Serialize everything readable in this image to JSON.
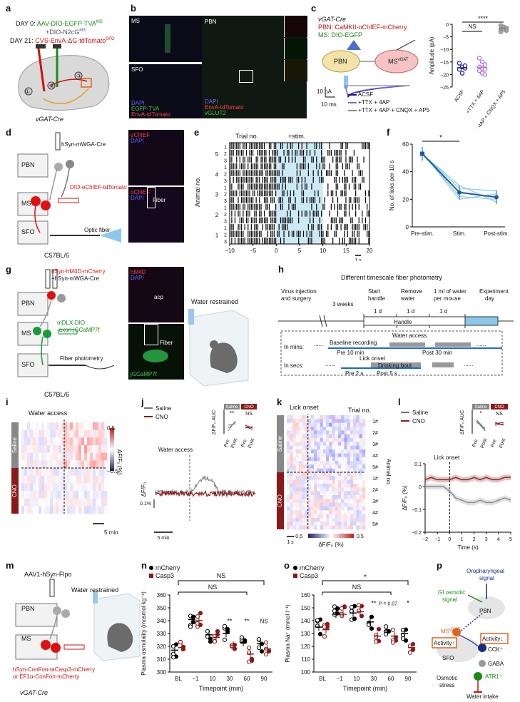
{
  "panels": {
    "a": "a",
    "b": "b",
    "c": "c",
    "d": "d",
    "e": "e",
    "f": "f",
    "g": "g",
    "h": "h",
    "i": "i",
    "j": "j",
    "k": "k",
    "l": "l",
    "m": "m",
    "n": "n",
    "o": "o",
    "p": "p"
  },
  "a": {
    "day0": "DAY 0:",
    "aav": "AAV-DIO-EGFP-TVA",
    "ms_sup": "MS",
    "n2cg": "+DIO-N2cG",
    "ms_sup2": "MS",
    "day21": "DAY 21:",
    "cvs": "CVS-EnvA-ΔG-tdTomato",
    "sfo_sup": "SFO",
    "n1": "①",
    "n2": "②",
    "n3": "③",
    "mouse": "vGAT-Cre"
  },
  "b": {
    "ms": "MS",
    "sfo": "SFO",
    "pbn": "PBN",
    "dapi": "DAPI",
    "egfp": "EGFP-TVA",
    "envA": "EnvA-tdTomato",
    "dapi2": "DAPI",
    "envA2": "EnvA-tdTomato",
    "vglut": "vGLUT2"
  },
  "c": {
    "line1": "vGAT-Cre",
    "line2": "PBN: CaMKII-oChIEF-mCherry",
    "line3": "MS: DIO-EGFP",
    "pbn": "PBN",
    "ms": "MS",
    "ms_sup": "vGAT",
    "scale_y": "10 pA",
    "scale_x": "10 ms",
    "legend": [
      "ACSF",
      "+TTX + 4AP",
      "+TTX + 4AP + CNQX + AP5"
    ],
    "ylabel": "Amplitude (pA)",
    "yticks": [
      "0",
      "−5",
      "−10",
      "−15",
      "−20",
      "−25"
    ],
    "ns": "NS",
    "sig": "****",
    "xticks": [
      "ACSF",
      "+TTX + 4AP",
      "+TTX + 4AP + CNQX + AP5"
    ]
  },
  "d": {
    "cre": "hSyn-mWGA-Cre",
    "pbn": "PBN",
    "ms": "MS",
    "dio": "DIO-oChIEF-tdTomato",
    "sfo": "SFO",
    "optic": "Optic fiber",
    "strain": "C57BL/6",
    "och1": "oChIEF",
    "dapi1": "DAPI",
    "och2": "oChIEF",
    "dapi2": "DAPI",
    "fiber": "Fiber"
  },
  "e": {
    "trial": "Trial no.",
    "stim": "+stim.",
    "ylabel": "Animal no.",
    "xticks": [
      "−10",
      "−5",
      "0",
      "5",
      "10",
      "15",
      "20"
    ],
    "scale": "1 s",
    "animals": [
      "5",
      "4",
      "3",
      "2",
      "1"
    ],
    "trials": [
      "1",
      "2",
      "3"
    ]
  },
  "f": {
    "ylabel": "No. of licks per 10 s",
    "yticks": [
      "0",
      "20",
      "40",
      "60"
    ],
    "xticks": [
      "Pre-stim.",
      "Stim.",
      "Post-stim."
    ],
    "sig": "*"
  },
  "g": {
    "hm4d": "hSyn-hM4D-mCherry",
    "wga": "+hSyn-mWGA-Cre",
    "pbn": "PBN",
    "ms": "MS",
    "dlx": "mDLX-DIO",
    "gcamp": "-axon-jGCaMP7f",
    "sfo": "SFO",
    "fp": "Fiber photometry",
    "strain": "C57BL/6",
    "restrained": "Water restrained",
    "hm4d_l": "hM4D",
    "dapi_l": "DAPI",
    "acp": "acp",
    "fiber": "Fiber",
    "jg": "jGCaMP7f"
  },
  "h": {
    "title": "Different timescale fiber photometry",
    "virus": "Virus injection",
    "surgery": "and surgery",
    "weeks": "3 weeks",
    "start": "Start",
    "handle": "handle",
    "remove": "Remove",
    "water": "water",
    "oneml": "1 ml of water",
    "permouse": "per mouse",
    "exp": "Experiment",
    "day": "day",
    "d1": "1 d",
    "d2": "1 d",
    "d3": "1 d",
    "handle_bar": "Handle",
    "inmins": "In mins:",
    "baseline": "Baseline recording",
    "wateraccess": "Water access",
    "pre10": "Pre 10 min",
    "post30": "Post 30 min",
    "insecs": "In secs:",
    "lickonset": "Lick onset",
    "drinking": "Drinking bout",
    "pre2": "Pre 2 s",
    "post5": "Post 5 s",
    "dots1": "......",
    "dots2": "......",
    "dots3": "......",
    "dots4": "......"
  },
  "i": {
    "title": "Water access",
    "saline": "Saline",
    "cno": "CNO",
    "cb_max": "0.5",
    "cb_min": "−0.5",
    "cb_label": "ΔF/F₀ (%)",
    "scale": "5 min"
  },
  "j": {
    "saline": "Saline",
    "cno": "CNO",
    "wa": "Water access",
    "ylabel": "ΔF/F₀",
    "scale_y": "0.1%",
    "scale_x": "5 min",
    "inset_ylabel": "ΔF/F₀ AUC",
    "inset_saline": "Saline",
    "inset_cno": "CNO",
    "sig1": "**",
    "sig2": "NS",
    "pre": "Pre",
    "post": "Post",
    "pre2": "Pre",
    "post2": "Post"
  },
  "k": {
    "lick": "Lick onset",
    "trial": "Trial no.",
    "saline": "Saline",
    "cno": "CNO",
    "animals": [
      "1#",
      "2#",
      "3#",
      "4#",
      "5#",
      "1#",
      "2#",
      "3#",
      "4#",
      "5#"
    ],
    "ylabel": "Animal no.",
    "scale": "1 s",
    "cb_min": "−0.5",
    "cb_max": "0.5",
    "cb_label": "ΔF/F₀ (%)"
  },
  "l": {
    "saline": "Saline",
    "cno": "CNO",
    "inset_ylabel": "ΔF/F₀ AUC",
    "inset_saline": "Saline",
    "inset_cno": "CNO",
    "sig1": "*",
    "sig2": "NS",
    "pre": "Pre",
    "post": "Post",
    "pre2": "Pre",
    "post2": "Post",
    "lick": "Lick onset",
    "ylabel": "ΔF/F₀ (%)",
    "yticks": [
      "0.1",
      "0",
      "−0.1",
      "−0.2"
    ],
    "xticks": [
      "−2",
      "−1",
      "0",
      "1",
      "2",
      "3",
      "4",
      "5"
    ],
    "xlabel": "Time (s)"
  },
  "m": {
    "flpo": "AAV1-hSyn-Flpo",
    "pbn": "PBN",
    "ms": "MS",
    "restrained": "Water restrained",
    "casp": "hSyn-ConFon-taCasp3-mCherry",
    "or": "or EF1α-ConFon-mCherry",
    "strain": "vGAT-Cre"
  },
  "n": {
    "legend": [
      "mCherry",
      "Casp3"
    ],
    "ylabel": "Plasma osmolality (mosmol kg⁻¹)",
    "yticks": [
      "300",
      "310",
      "320",
      "330",
      "340",
      "350",
      "360"
    ],
    "xticks": [
      "BL",
      "−1",
      "10",
      "30",
      "60",
      "90"
    ],
    "xlabel": "Timepoint (min)",
    "ns1": "NS",
    "ns2": "NS",
    "ns3": "NS",
    "s1": "**",
    "s2": "**"
  },
  "o": {
    "legend": [
      "mCherry",
      "Casp3"
    ],
    "ylabel": "Plasma Na⁺ (mmol l⁻¹)",
    "yticks": [
      "100",
      "110",
      "120",
      "130",
      "140",
      "150",
      "160"
    ],
    "xticks": [
      "BL",
      "−1",
      "10",
      "30",
      "60",
      "90"
    ],
    "xlabel": "Timepoint (min)",
    "top": "*",
    "ns": "NS",
    "s1": "**",
    "p": "P = 0.07",
    "s2": "*"
  },
  "p": {
    "oro": "Oropharyngeal",
    "signal": "signal",
    "gi1": "GI osmotic",
    "gi2": "signal",
    "pbn": "PBN",
    "ms": "MS",
    "ms_sup": "vGAT",
    "activity1": "Activity",
    "activity2": "Activity",
    "sfo": "SFO",
    "cck": "CCK⁺",
    "gaba": "GABA",
    "atr1": "ATR1⁺",
    "osm1": "Osmotic",
    "osm2": "stress",
    "water": "Water intake"
  },
  "chart_data": [
    {
      "panel": "c",
      "type": "scatter",
      "ylabel": "Amplitude (pA)",
      "ylim": [
        -25,
        0
      ],
      "categories": [
        "ACSF",
        "+TTX + 4AP",
        "+TTX + 4AP + CNQX + AP5"
      ],
      "series": [
        {
          "name": "ACSF",
          "values": [
            -15.5,
            -17,
            -17.5,
            -18,
            -19.5,
            -16.5
          ]
        },
        {
          "name": "+TTX + 4AP",
          "values": [
            -13.5,
            -15,
            -16,
            -17,
            -17.5,
            -18,
            -18.5,
            -19.5,
            -20
          ]
        },
        {
          "name": "+TTX + 4AP + CNQX + AP5",
          "values": [
            -0.5,
            -1,
            -1.5,
            -2,
            -2,
            -2.5,
            -3
          ]
        }
      ]
    },
    {
      "panel": "f",
      "type": "line",
      "ylabel": "No. of licks per 10 s",
      "ylim": [
        0,
        60
      ],
      "categories": [
        "Pre-stim.",
        "Stim.",
        "Post-stim."
      ],
      "series": [
        {
          "name": "",
          "values": [
            53,
            25,
            21.5
          ]
        }
      ]
    },
    {
      "panel": "l",
      "type": "line",
      "xlabel": "Time (s)",
      "ylabel": "ΔF/F₀ (%)",
      "xlim": [
        -2,
        5
      ],
      "ylim": [
        -0.2,
        0.1
      ],
      "series": [
        {
          "name": "Saline",
          "values": [
            0,
            0,
            0,
            0,
            -0.02,
            -0.05,
            -0.06,
            -0.07,
            -0.07,
            -0.06,
            -0.07,
            -0.07,
            -0.06,
            -0.05,
            -0.06
          ]
        },
        {
          "name": "CNO",
          "values": [
            0.03,
            0.04,
            0.03,
            0.03,
            0.03,
            0.04,
            0.03,
            0.03,
            0.04,
            0.03,
            0.04,
            0.03,
            0.03,
            0.04,
            0.04
          ]
        }
      ]
    },
    {
      "panel": "n",
      "type": "scatter",
      "ylabel": "Plasma osmolality (mosmol kg⁻¹)",
      "ylim": [
        300,
        360
      ],
      "categories": [
        "BL",
        "−1",
        "10",
        "30",
        "60",
        "90"
      ],
      "series": [
        {
          "name": "mCherry",
          "values": [
            317,
            341,
            329,
            330,
            323,
            322
          ]
        },
        {
          "name": "Casp3",
          "values": [
            319,
            340,
            327,
            321,
            314,
            318
          ]
        }
      ]
    },
    {
      "panel": "o",
      "type": "scatter",
      "ylabel": "Plasma Na⁺ (mmol l⁻¹)",
      "ylim": [
        100,
        160
      ],
      "categories": [
        "BL",
        "−1",
        "10",
        "30",
        "60",
        "90"
      ],
      "series": [
        {
          "name": "mCherry",
          "values": [
            135,
            145,
            146,
            139,
            132,
            130
          ]
        },
        {
          "name": "Casp3",
          "values": [
            133,
            145,
            147,
            128,
            128,
            119
          ]
        }
      ]
    }
  ]
}
